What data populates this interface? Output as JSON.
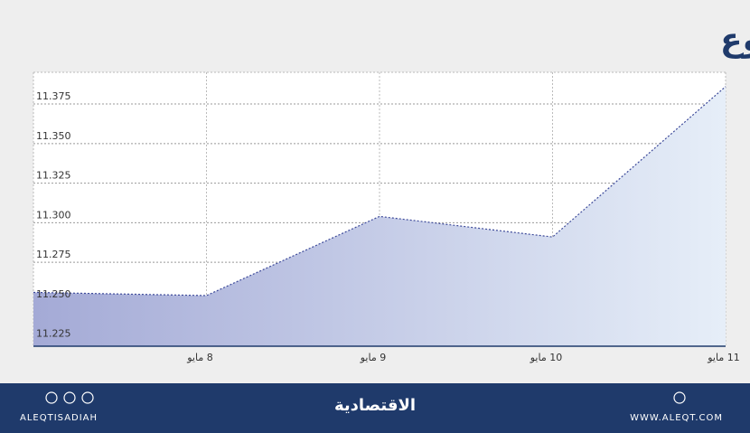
{
  "chart_data": {
    "type": "area",
    "title": "المؤشر في أسبوع",
    "categories": [
      null,
      "8 مايو",
      "9 مايو",
      "10 مايو",
      "11 مايو"
    ],
    "values": [
      11.256,
      11.254,
      11.304,
      11.291,
      11.386
    ],
    "color": "#3d4a9a",
    "ylim": [
      11.222,
      11.395
    ],
    "yticks": [
      11.225,
      {
        "value": 11.25,
        "label": "11.250"
      },
      11.275,
      {
        "value": 11.3,
        "label": "11.300"
      },
      11.325,
      {
        "value": 11.35,
        "label": "11.350"
      },
      11.375
    ],
    "grid": true
  },
  "footer": {
    "left": "ALEQTISADIAH",
    "center": "الاقتصادية",
    "right": "WWW.ALEQT.COM"
  }
}
